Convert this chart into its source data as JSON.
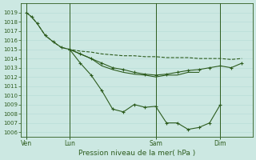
{
  "bg_color": "#cce8e2",
  "grid_color": "#b8ddd8",
  "line_color": "#2d5c1e",
  "xlabel": "Pression niveau de la mer( hPa )",
  "ylim": [
    1005.5,
    1020.0
  ],
  "yticks": [
    1006,
    1007,
    1008,
    1009,
    1010,
    1011,
    1012,
    1013,
    1014,
    1015,
    1016,
    1017,
    1018,
    1019
  ],
  "xtick_labels": [
    "Ven",
    "Lun",
    "Sam",
    "Dim"
  ],
  "xtick_positions": [
    0,
    16,
    48,
    72
  ],
  "vline_positions": [
    0,
    16,
    48,
    72
  ],
  "xlim": [
    -2,
    84
  ],
  "lines": [
    {
      "x": [
        0,
        2,
        4,
        7,
        10,
        13,
        16,
        20,
        24,
        28,
        32,
        36,
        40,
        44,
        48,
        52,
        56,
        60,
        64,
        68,
        72,
        76,
        80
      ],
      "y": [
        1019,
        1018.5,
        1017.8,
        1016.5,
        1015.8,
        1015.2,
        1015.0,
        1014.8,
        1014.7,
        1014.5,
        1014.4,
        1014.3,
        1014.3,
        1014.2,
        1014.2,
        1014.1,
        1014.1,
        1014.1,
        1014.0,
        1014.0,
        1014.0,
        1013.9,
        1014.0
      ],
      "marker": false,
      "linestyle": "--",
      "lw": 0.8
    },
    {
      "x": [
        0,
        2,
        4,
        7,
        10,
        13,
        16,
        20,
        24,
        28,
        32,
        36,
        40,
        44,
        48,
        52,
        56,
        60,
        64,
        68,
        72,
        76,
        80
      ],
      "y": [
        1019,
        1018.5,
        1017.8,
        1016.5,
        1015.8,
        1015.2,
        1015.0,
        1014.5,
        1014.0,
        1013.5,
        1013.0,
        1012.8,
        1012.5,
        1012.3,
        1012.2,
        1012.3,
        1012.5,
        1012.7,
        1012.8,
        1013.0,
        1013.2,
        1013.0,
        1013.5
      ],
      "marker": true,
      "linestyle": "-",
      "lw": 0.8
    },
    {
      "x": [
        16,
        20,
        24,
        28,
        32,
        36,
        40,
        44,
        48,
        52,
        56,
        60,
        64,
        68,
        72
      ],
      "y": [
        1015.0,
        1013.5,
        1012.2,
        1010.5,
        1008.5,
        1008.2,
        1009.0,
        1008.7,
        1008.8,
        1007.0,
        1007.0,
        1006.3,
        1006.5,
        1007.0,
        1009.0
      ],
      "marker": true,
      "linestyle": "-",
      "lw": 0.8
    },
    {
      "x": [
        16,
        20,
        24,
        28,
        32,
        36,
        40,
        44,
        48,
        52,
        56,
        60,
        64
      ],
      "y": [
        1015.0,
        1014.5,
        1014.0,
        1013.2,
        1012.8,
        1012.5,
        1012.3,
        1012.2,
        1012.0,
        1012.2,
        1012.2,
        1012.5,
        1012.5
      ],
      "marker": false,
      "linestyle": "-",
      "lw": 0.8
    }
  ],
  "figsize": [
    3.2,
    2.0
  ],
  "dpi": 100
}
